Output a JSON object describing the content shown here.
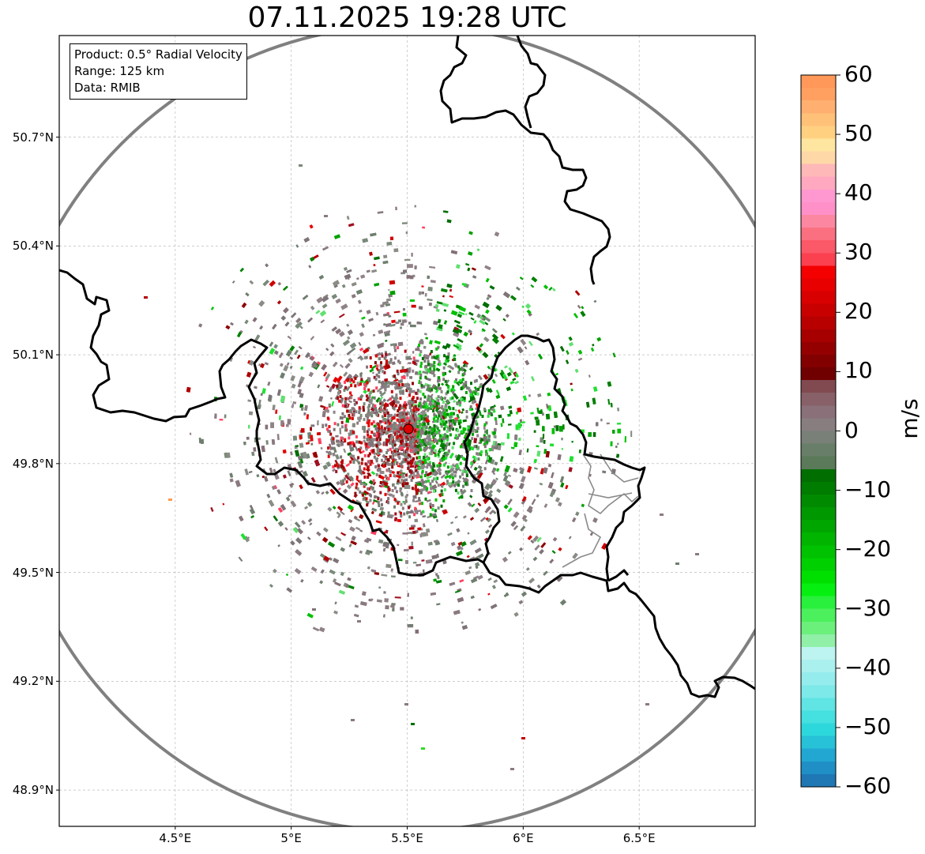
{
  "title": "07.11.2025 19:28 UTC",
  "info_box": {
    "product": "Product: 0.5° Radial Velocity",
    "range": "Range: 125 km",
    "data": "Data: RMIB"
  },
  "axes": {
    "lon_range": [
      4.0,
      7.0
    ],
    "lat_range": [
      48.8,
      50.98
    ],
    "x_ticks": [
      {
        "value": 4.5,
        "label": "4.5°E"
      },
      {
        "value": 5.0,
        "label": "5°E"
      },
      {
        "value": 5.5,
        "label": "5.5°E"
      },
      {
        "value": 6.0,
        "label": "6°E"
      },
      {
        "value": 6.5,
        "label": "6.5°E"
      }
    ],
    "y_ticks": [
      {
        "value": 50.7,
        "label": "50.7°N"
      },
      {
        "value": 50.4,
        "label": "50.4°N"
      },
      {
        "value": 50.1,
        "label": "50.1°N"
      },
      {
        "value": 49.8,
        "label": "49.8°N"
      },
      {
        "value": 49.5,
        "label": "49.5°N"
      },
      {
        "value": 49.2,
        "label": "49.2°N"
      },
      {
        "value": 48.9,
        "label": "48.9°N"
      }
    ],
    "grid": true
  },
  "radar_site": {
    "lon": 5.505,
    "lat": 49.914,
    "color": "#dd0000"
  },
  "range_ring_km": 125,
  "colorbar": {
    "label": "m/s",
    "min": -60,
    "max": 60,
    "ticks": [
      {
        "value": 60,
        "label": "60"
      },
      {
        "value": 50,
        "label": "50"
      },
      {
        "value": 40,
        "label": "40"
      },
      {
        "value": 30,
        "label": "30"
      },
      {
        "value": 20,
        "label": "20"
      },
      {
        "value": 10,
        "label": "10"
      },
      {
        "value": 0,
        "label": "0"
      },
      {
        "value": -10,
        "label": "−10"
      },
      {
        "value": -20,
        "label": "−20"
      },
      {
        "value": -30,
        "label": "−30"
      },
      {
        "value": -40,
        "label": "−40"
      },
      {
        "value": -50,
        "label": "−50"
      },
      {
        "value": -60,
        "label": "−60"
      }
    ],
    "colors_bottom_to_top": [
      "#1f77b4",
      "#1f8fc6",
      "#22a7d2",
      "#27c1d8",
      "#2dd8dc",
      "#45e0e0",
      "#60e4e4",
      "#7de9e9",
      "#95ecec",
      "#aaf0ee",
      "#bdf3f0",
      "#90f0a8",
      "#6cf07c",
      "#4cf05c",
      "#28f03c",
      "#05f010",
      "#00e000",
      "#00d000",
      "#00c200",
      "#00b400",
      "#00a600",
      "#009800",
      "#008a00",
      "#007c00",
      "#006e00",
      "#5a7a5a",
      "#687e68",
      "#788078",
      "#887e80",
      "#8a7078",
      "#886068",
      "#804a50",
      "#700000",
      "#820000",
      "#940000",
      "#a60000",
      "#b80000",
      "#c80000",
      "#d80000",
      "#e80000",
      "#f50000",
      "#fb4050",
      "#fb5868",
      "#fb7080",
      "#fb88a0",
      "#ff90c8",
      "#ff98d0",
      "#ffa8c0",
      "#ffb8b8",
      "#ffd8a8",
      "#ffe6a0",
      "#ffd080",
      "#ffc078",
      "#ffb070",
      "#ffa060",
      "#ff9858"
    ]
  },
  "legend": {
    "boundary_color": "#000000",
    "subboundary_color": "#808080",
    "ring_color": "#808080"
  }
}
